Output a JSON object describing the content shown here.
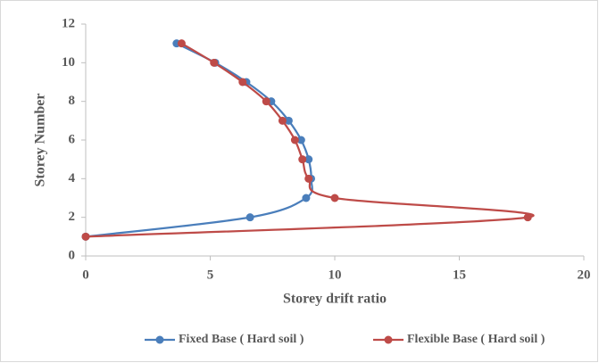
{
  "chart_data": {
    "type": "line",
    "xlabel": "Storey drift ratio",
    "ylabel": "Storey Number",
    "xlim": [
      0,
      20
    ],
    "xticks": [
      0,
      5,
      10,
      15,
      20
    ],
    "ylim": [
      0,
      12
    ],
    "yticks": [
      0,
      2,
      4,
      6,
      8,
      10,
      12
    ],
    "grid": false,
    "legend": "bottom",
    "smooth": true,
    "series": [
      {
        "name": "Fixed Base ( Hard soil )",
        "color": "#4a7ebb",
        "x": [
          0,
          6.6,
          8.85,
          9.05,
          8.95,
          8.65,
          8.15,
          7.45,
          6.45,
          5.2,
          3.65
        ],
        "values": [
          1,
          2,
          3,
          4,
          5,
          6,
          7,
          8,
          9,
          10,
          11
        ]
      },
      {
        "name": "Flexible Base ( Hard soil )",
        "color": "#be4b48",
        "x": [
          0,
          17.75,
          10.0,
          8.95,
          8.7,
          8.4,
          7.9,
          7.25,
          6.3,
          5.15,
          3.85
        ],
        "values": [
          1,
          2,
          3,
          4,
          5,
          6,
          7,
          8,
          9,
          10,
          11
        ]
      }
    ]
  }
}
